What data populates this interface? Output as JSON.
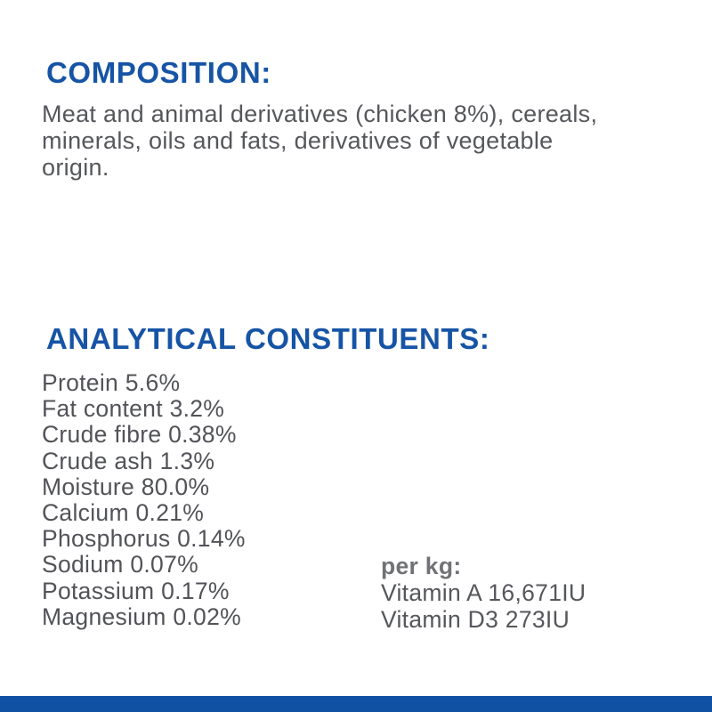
{
  "page": {
    "background_color": "#ffffff",
    "accent_blue": "#1654A5",
    "footer_bar_color": "#1151A3",
    "body_text_color": "#55575B"
  },
  "composition": {
    "heading": "COMPOSITION:",
    "body_lines": [
      "Meat and animal derivatives (chicken 8%), cereals,",
      "minerals, oils and fats, derivatives of vegetable",
      "origin."
    ]
  },
  "analytical": {
    "heading": "ANALYTICAL CONSTITUENTS:",
    "nutrients": [
      {
        "label": "Protein",
        "value": "5.6%"
      },
      {
        "label": "Fat content",
        "value": "3.2%"
      },
      {
        "label": "Crude fibre",
        "value": "0.38%"
      },
      {
        "label": "Crude ash",
        "value": "1.3%"
      },
      {
        "label": "Moisture",
        "value": "80.0%"
      },
      {
        "label": "Calcium",
        "value": "0.21%"
      },
      {
        "label": "Phosphorus",
        "value": "0.14%"
      },
      {
        "label": "Sodium",
        "value": "0.07%"
      },
      {
        "label": "Potassium",
        "value": "0.17%"
      },
      {
        "label": "Magnesium",
        "value": "0.02%"
      }
    ],
    "per_kg": {
      "heading": "per kg:",
      "vitamins": [
        {
          "label": "Vitamin A",
          "value": "16,671IU"
        },
        {
          "label": "Vitamin D3",
          "value": "273IU"
        }
      ]
    }
  }
}
